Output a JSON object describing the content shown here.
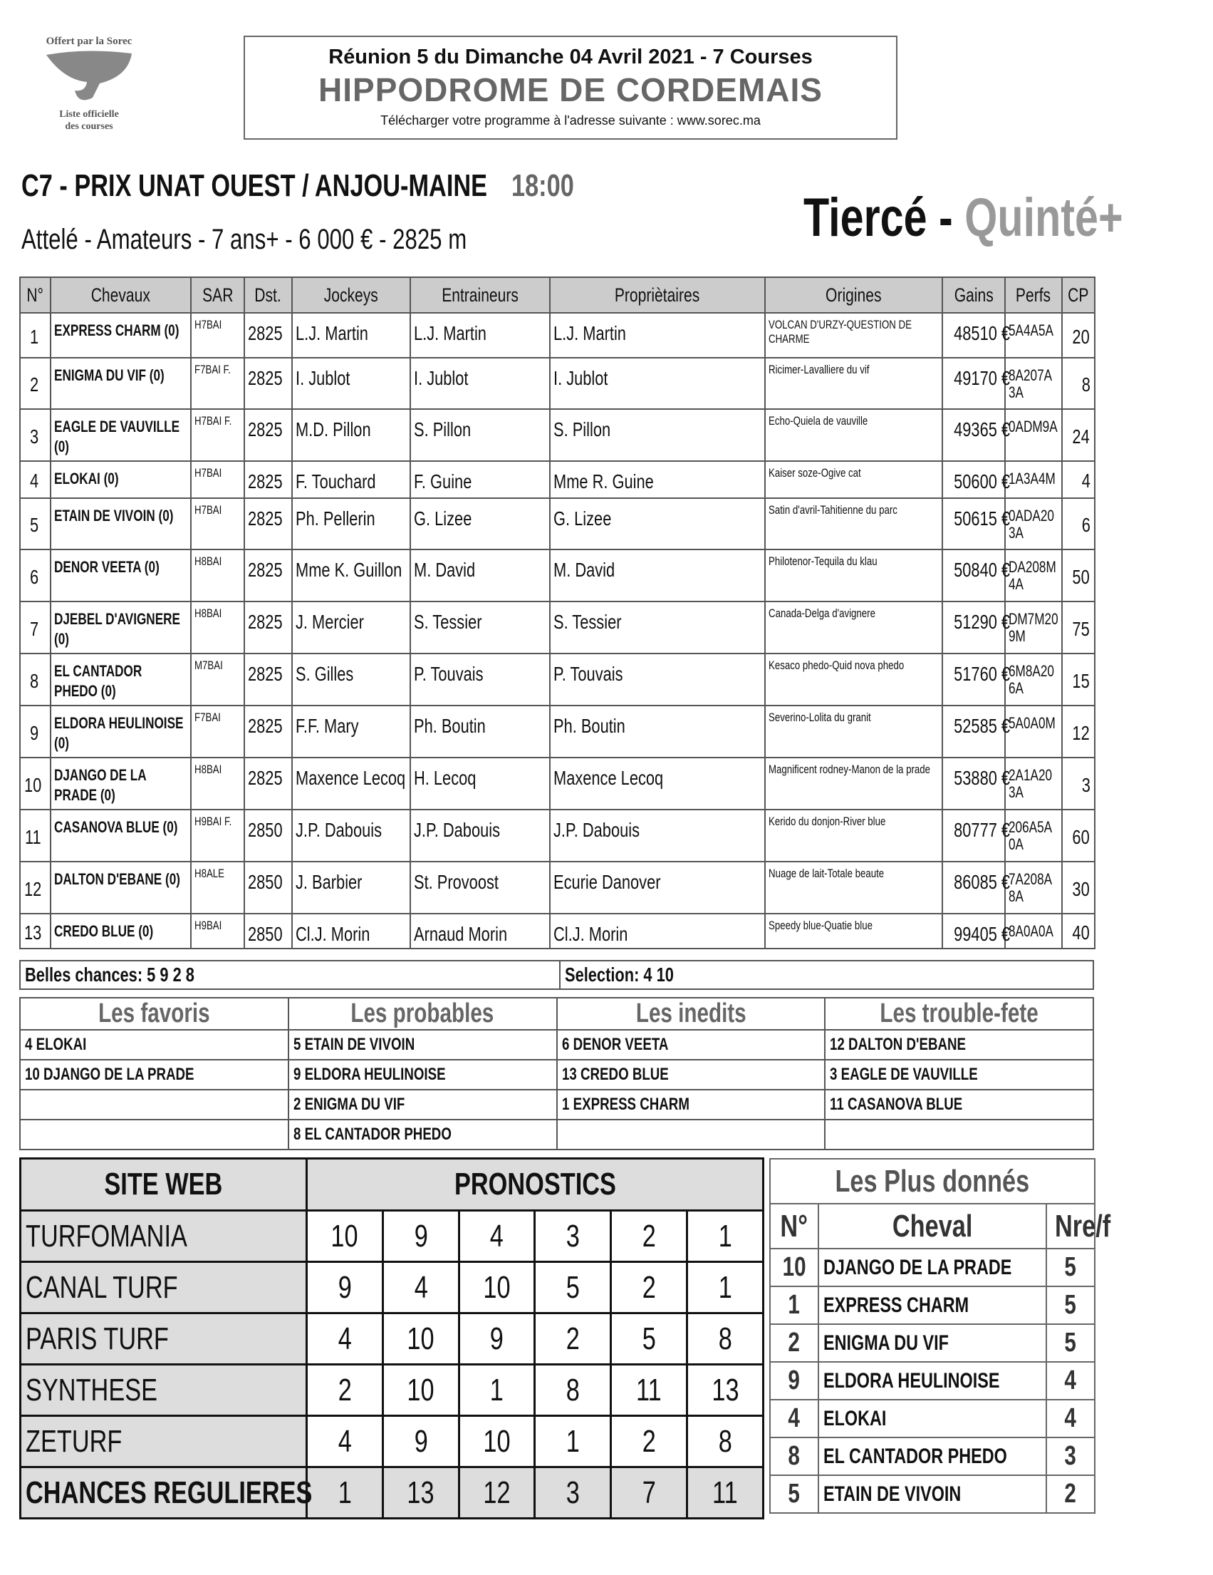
{
  "logo": {
    "top": "Offert par la Sorec",
    "bottom1": "Liste officielle",
    "bottom2": "des courses"
  },
  "header": {
    "line1": "Réunion 5 du Dimanche 04 Avril 2021 - 7 Courses",
    "line2": "HIPPODROME DE CORDEMAIS",
    "line3": "Télécharger votre programme à l'adresse suivante : www.sorec.ma"
  },
  "race": {
    "title": "C7 -  PRIX UNAT OUEST / ANJOU-MAINE",
    "time": "18:00",
    "subtitle": "Attelé - Amateurs - 7 ans+ - 6 000 € - 2825 m",
    "bet1": "Tiercé",
    "bet_sep": " - ",
    "bet2": "Quinté+"
  },
  "table": {
    "headers": [
      "N°",
      "Chevaux",
      "SAR",
      "Dst.",
      "Jockeys",
      "Entraineurs",
      "Propriètaires",
      "Origines",
      "Gains",
      "Perfs",
      "CP"
    ],
    "rows": [
      [
        "1",
        "EXPRESS CHARM (0)",
        "H7BAI",
        "2825",
        "L.J. Martin",
        "L.J. Martin",
        "L.J. Martin",
        "VOLCAN D'URZY-QUESTION DE CHARME",
        "48510 €",
        "5A4A5A",
        "20"
      ],
      [
        "2",
        "ENIGMA DU VIF (0)",
        "F7BAI F.",
        "2825",
        "I. Jublot",
        "I. Jublot",
        "I. Jublot",
        "Ricimer-Lavalliere du vif",
        "49170 €",
        "8A207A 3A",
        "8"
      ],
      [
        "3",
        "EAGLE DE VAUVILLE (0)",
        "H7BAI F.",
        "2825",
        "M.D. Pillon",
        "S. Pillon",
        "S. Pillon",
        "Echo-Quiela de vauville",
        "49365 €",
        "0ADM9A",
        "24"
      ],
      [
        "4",
        "ELOKAI (0)",
        "H7BAI",
        "2825",
        "F. Touchard",
        "F. Guine",
        "Mme R. Guine",
        "Kaiser soze-Ogive cat",
        "50600 €",
        "1A3A4M",
        "4"
      ],
      [
        "5",
        "ETAIN DE VIVOIN (0)",
        "H7BAI",
        "2825",
        "Ph. Pellerin",
        "G. Lizee",
        "G. Lizee",
        "Satin d'avril-Tahitienne du parc",
        "50615 €",
        "0ADA20 3A",
        "6"
      ],
      [
        "6",
        "DENOR VEETA (0)",
        "H8BAI",
        "2825",
        "Mme K. Guillon",
        "M. David",
        "M. David",
        "Philotenor-Tequila du klau",
        "50840 €",
        "DA208M 4A",
        "50"
      ],
      [
        "7",
        "DJEBEL D'AVIGNERE (0)",
        "H8BAI",
        "2825",
        "J. Mercier",
        "S. Tessier",
        "S. Tessier",
        "Canada-Delga d'avignere",
        "51290 €",
        "DM7M20 9M",
        "75"
      ],
      [
        "8",
        "EL CANTADOR PHEDO (0)",
        "M7BAI",
        "2825",
        "S. Gilles",
        "P. Touvais",
        "P. Touvais",
        "Kesaco phedo-Quid nova phedo",
        "51760 €",
        "6M8A20 6A",
        "15"
      ],
      [
        "9",
        "ELDORA HEULINOISE (0)",
        "F7BAI",
        "2825",
        "F.F. Mary",
        "Ph. Boutin",
        "Ph. Boutin",
        "Severino-Lolita du granit",
        "52585 €",
        "5A0A0M",
        "12"
      ],
      [
        "10",
        "DJANGO DE LA PRADE (0)",
        "H8BAI",
        "2825",
        "Maxence Lecoq",
        "H. Lecoq",
        "Maxence Lecoq",
        "Magnificent rodney-Manon de la prade",
        "53880 €",
        "2A1A20 3A",
        "3"
      ],
      [
        "11",
        "CASANOVA BLUE (0)",
        "H9BAI F.",
        "2850",
        "J.P. Dabouis",
        "J.P. Dabouis",
        "J.P. Dabouis",
        "Kerido du donjon-River blue",
        "80777 €",
        "206A5A 0A",
        "60"
      ],
      [
        "12",
        "DALTON D'EBANE (0)",
        "H8ALE",
        "2850",
        "J. Barbier",
        "St. Provoost",
        "Ecurie Danover",
        "Nuage de lait-Totale beaute",
        "86085 €",
        "7A208A 8A",
        "30"
      ],
      [
        "13",
        "CREDO BLUE (0)",
        "H9BAI",
        "2850",
        "Cl.J. Morin",
        "Arnaud Morin",
        "Cl.J. Morin",
        "Speedy blue-Quatie blue",
        "99405 €",
        "8A0A0A",
        "40"
      ]
    ]
  },
  "belles": {
    "chances": "Belles chances: 5 9 2 8",
    "selection": "Selection: 4 10"
  },
  "categories": {
    "headers": [
      "Les favoris",
      "Les probables",
      "Les inedits",
      "Les trouble-fete"
    ],
    "rows": [
      [
        "4 ELOKAI",
        "5 ETAIN DE VIVOIN",
        "6 DENOR VEETA",
        "12 DALTON D'EBANE"
      ],
      [
        "10 DJANGO DE LA PRADE",
        "9 ELDORA HEULINOISE",
        "13 CREDO BLUE",
        "3 EAGLE DE VAUVILLE"
      ],
      [
        "",
        "2 ENIGMA DU VIF",
        "1 EXPRESS CHARM",
        "11 CASANOVA BLUE"
      ],
      [
        "",
        "8 EL CANTADOR PHEDO",
        "",
        ""
      ]
    ]
  },
  "pronostics": {
    "site_header": "SITE WEB",
    "prono_header": "PRONOSTICS",
    "rows": [
      {
        "site": "TURFOMANIA",
        "picks": [
          "10",
          "9",
          "4",
          "3",
          "2",
          "1"
        ]
      },
      {
        "site": "CANAL TURF",
        "picks": [
          "9",
          "4",
          "10",
          "5",
          "2",
          "1"
        ]
      },
      {
        "site": "PARIS TURF",
        "picks": [
          "4",
          "10",
          "9",
          "2",
          "5",
          "8"
        ]
      },
      {
        "site": "SYNTHESE",
        "picks": [
          "2",
          "10",
          "1",
          "8",
          "11",
          "13"
        ]
      },
      {
        "site": "ZETURF",
        "picks": [
          "4",
          "9",
          "10",
          "1",
          "2",
          "8"
        ]
      },
      {
        "site": "CHANCES REGULIERES",
        "picks": [
          "1",
          "13",
          "12",
          "3",
          "7",
          "11"
        ]
      }
    ]
  },
  "plus_donnes": {
    "title": "Les Plus donnés",
    "headers": [
      "N°",
      "Cheval",
      "Nre/f"
    ],
    "rows": [
      [
        "10",
        "DJANGO DE LA PRADE",
        "5"
      ],
      [
        "1",
        "EXPRESS CHARM",
        "5"
      ],
      [
        "2",
        "ENIGMA DU VIF",
        "5"
      ],
      [
        "9",
        "ELDORA HEULINOISE",
        "4"
      ],
      [
        "4",
        "ELOKAI",
        "4"
      ],
      [
        "8",
        "EL CANTADOR PHEDO",
        "3"
      ],
      [
        "5",
        "ETAIN DE VIVOIN",
        "2"
      ]
    ]
  }
}
